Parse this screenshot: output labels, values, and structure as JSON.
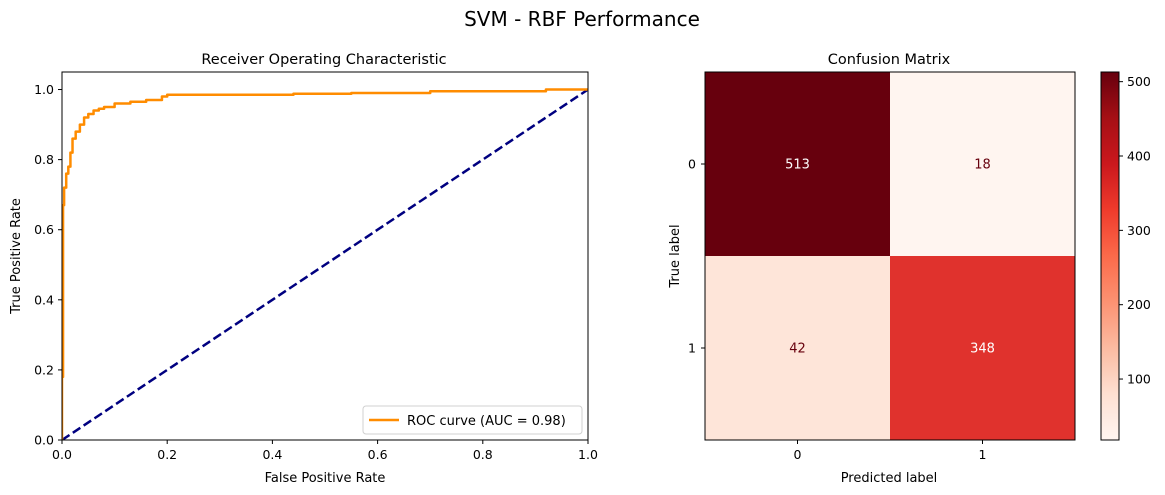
{
  "figure": {
    "title": "SVM - RBF Performance"
  },
  "chart_data": [
    {
      "type": "line",
      "title": "Receiver Operating Characteristic",
      "xlabel": "False Positive Rate",
      "ylabel": "True Positive Rate",
      "xlim": [
        0.0,
        1.0
      ],
      "ylim": [
        0.0,
        1.05
      ],
      "xticks": [
        0.0,
        0.2,
        0.4,
        0.6,
        0.8,
        1.0
      ],
      "xtick_labels": [
        "0.0",
        "0.2",
        "0.4",
        "0.6",
        "0.8",
        "1.0"
      ],
      "yticks": [
        0.0,
        0.2,
        0.4,
        0.6,
        0.8,
        1.0
      ],
      "ytick_labels": [
        "0.0",
        "0.2",
        "0.4",
        "0.6",
        "0.8",
        "1.0"
      ],
      "grid": false,
      "legend_position": "lower-right",
      "series": [
        {
          "name": "ROC curve (AUC = 0.98)",
          "color": "#ff8c00",
          "style": "solid",
          "x": [
            0.0,
            0.0,
            0.002,
            0.002,
            0.004,
            0.004,
            0.008,
            0.008,
            0.012,
            0.012,
            0.016,
            0.016,
            0.02,
            0.02,
            0.026,
            0.026,
            0.034,
            0.034,
            0.042,
            0.042,
            0.05,
            0.05,
            0.06,
            0.06,
            0.07,
            0.07,
            0.08,
            0.08,
            0.1,
            0.1,
            0.13,
            0.13,
            0.16,
            0.16,
            0.19,
            0.19,
            0.2,
            0.2,
            0.44,
            0.44,
            0.55,
            0.55,
            0.7,
            0.7,
            0.92,
            0.92,
            1.0
          ],
          "y": [
            0.0,
            0.18,
            0.18,
            0.67,
            0.67,
            0.72,
            0.72,
            0.76,
            0.76,
            0.78,
            0.78,
            0.82,
            0.82,
            0.86,
            0.86,
            0.88,
            0.88,
            0.9,
            0.9,
            0.92,
            0.92,
            0.93,
            0.93,
            0.94,
            0.94,
            0.945,
            0.945,
            0.95,
            0.95,
            0.96,
            0.96,
            0.965,
            0.965,
            0.97,
            0.97,
            0.98,
            0.98,
            0.985,
            0.985,
            0.988,
            0.988,
            0.99,
            0.99,
            0.995,
            0.995,
            1.0,
            1.0
          ]
        },
        {
          "name": "",
          "color": "#000080",
          "style": "dashed",
          "x": [
            0.0,
            1.0
          ],
          "y": [
            0.0,
            1.0
          ]
        }
      ]
    },
    {
      "type": "heatmap",
      "title": "Confusion Matrix",
      "xlabel": "Predicted label",
      "ylabel": "True label",
      "x_categories": [
        "0",
        "1"
      ],
      "y_categories": [
        "0",
        "1"
      ],
      "values": [
        [
          513,
          18
        ],
        [
          42,
          348
        ]
      ],
      "colormap": "Reds",
      "colorbar": {
        "min": 18,
        "max": 513,
        "ticks": [
          100,
          200,
          300,
          400,
          500
        ],
        "tick_labels": [
          "100",
          "200",
          "300",
          "400",
          "500"
        ]
      },
      "cell_colors": [
        [
          "#67000d",
          "#fff5f0"
        ],
        [
          "#fee5d9",
          "#e0322d"
        ]
      ],
      "text_colors": [
        [
          "#ffffff",
          "#67000d"
        ],
        [
          "#67000d",
          "#ffffff"
        ]
      ]
    }
  ]
}
